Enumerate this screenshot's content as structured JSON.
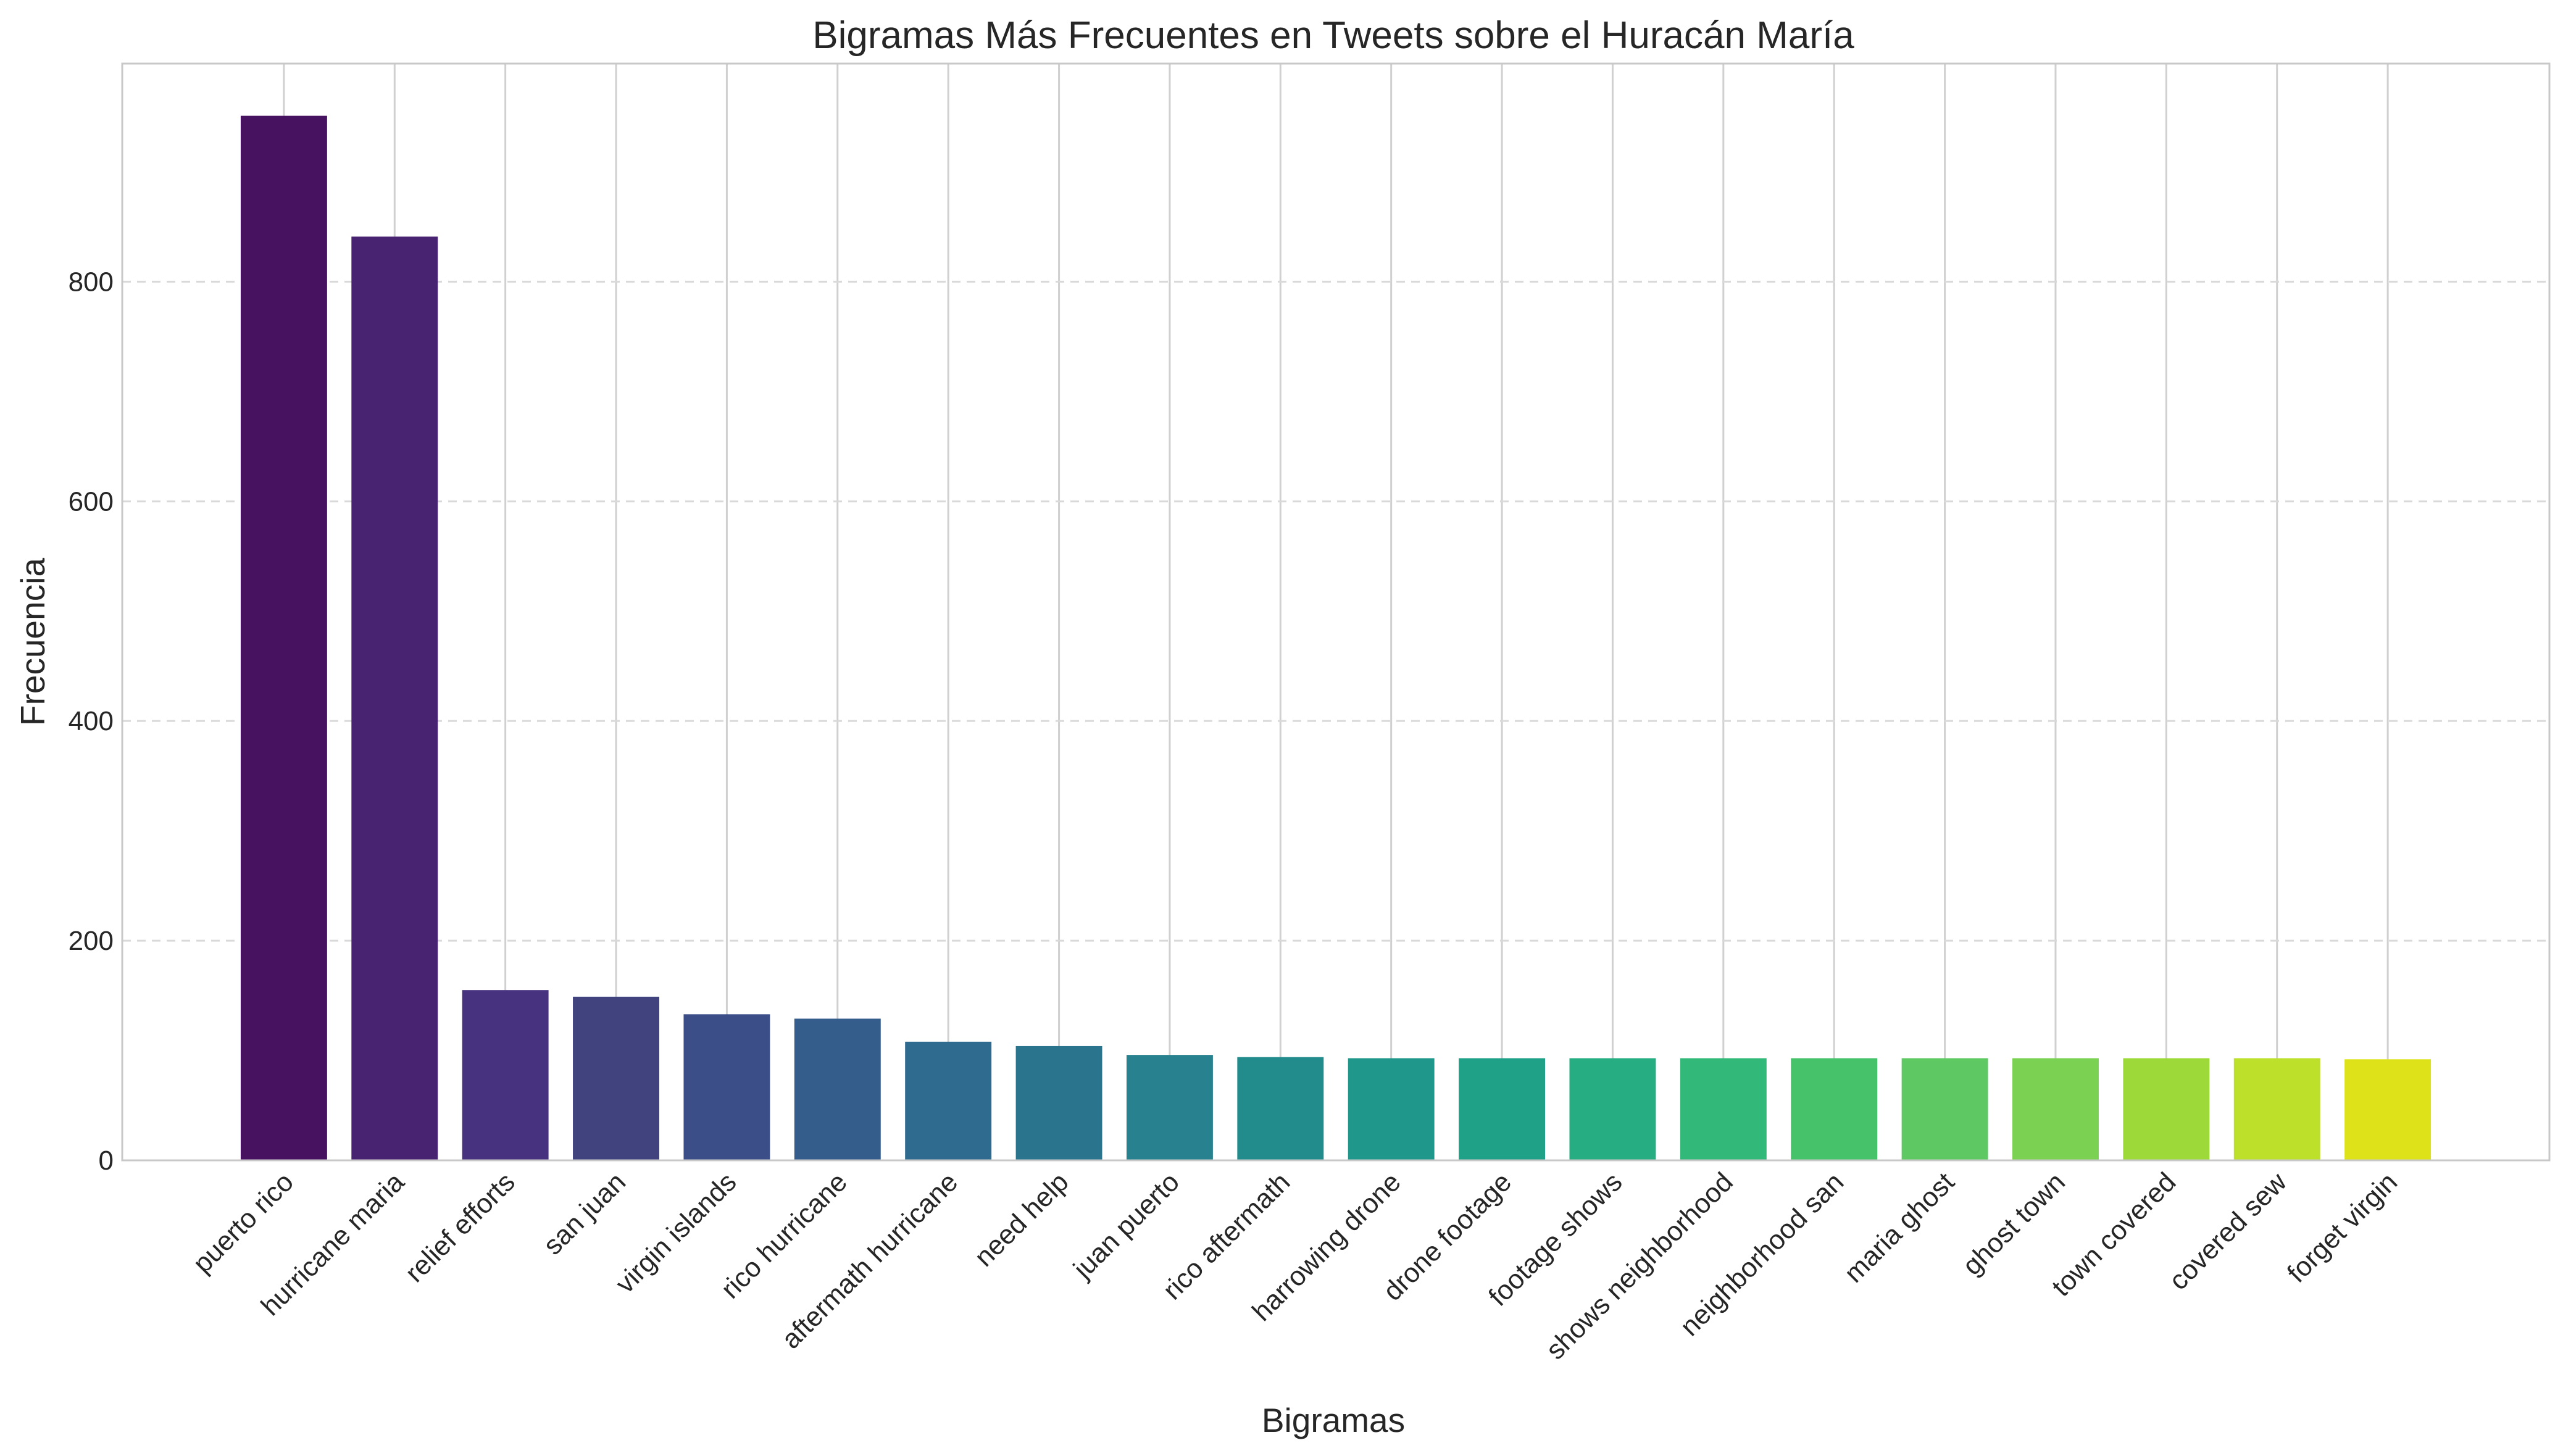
{
  "chart_data": {
    "type": "bar",
    "title": "Bigramas Más Frecuentes en Tweets sobre el Huracán María",
    "xlabel": "Bigramas",
    "ylabel": "Frecuencia",
    "categories": [
      "puerto rico",
      "hurricane maria",
      "relief efforts",
      "san juan",
      "virgin islands",
      "rico hurricane",
      "aftermath hurricane",
      "need help",
      "juan puerto",
      "rico aftermath",
      "harrowing drone",
      "drone footage",
      "footage shows",
      "shows neighborhood",
      "neighborhood san",
      "maria ghost",
      "ghost town",
      "town covered",
      "covered sew",
      "forget virgin"
    ],
    "values": [
      951,
      841,
      155,
      149,
      133,
      129,
      108,
      104,
      96,
      94,
      93,
      93,
      93,
      93,
      93,
      93,
      93,
      93,
      93,
      92
    ],
    "colors": [
      "#47125f",
      "#482372",
      "#46327e",
      "#41437f",
      "#3c4e88",
      "#355d8c",
      "#2f6b8e",
      "#2b748e",
      "#27818e",
      "#228c8d",
      "#1f978b",
      "#1fa187",
      "#26ad81",
      "#32b878",
      "#45c26a",
      "#5ec962",
      "#7bd151",
      "#9ed93a",
      "#bde12b",
      "#dde318"
    ],
    "yticks": [
      0,
      200,
      400,
      600,
      800
    ],
    "ylim": [
      0,
      998.55
    ],
    "grid": true
  }
}
